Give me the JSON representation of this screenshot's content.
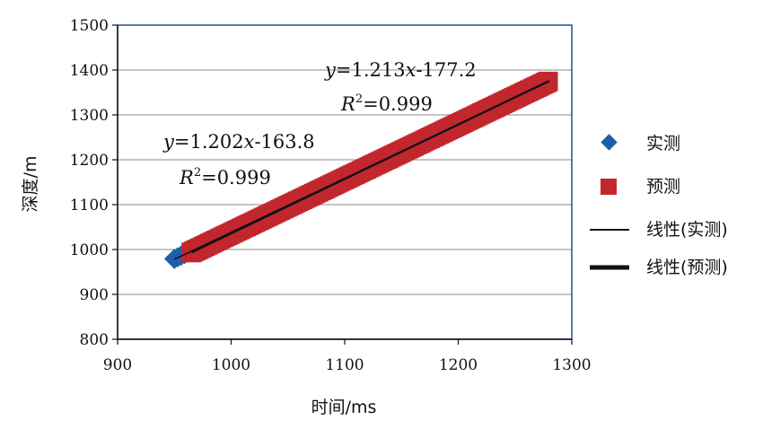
{
  "chart_data": {
    "type": "scatter",
    "xlabel": "时间/ms",
    "ylabel": "深度/m",
    "xlim": [
      900,
      1300
    ],
    "ylim": [
      800,
      1500
    ],
    "xticks": [
      "900",
      "1000",
      "1100",
      "1200",
      "1300"
    ],
    "yticks": [
      "800",
      "900",
      "1000",
      "1100",
      "1200",
      "1300",
      "1400",
      "1500"
    ],
    "grid": "horizontal",
    "legend_position": "right",
    "series": [
      {
        "name": "实测",
        "marker": "diamond",
        "color": "#1f5fa8",
        "x_range": [
          950,
          965
        ],
        "points": [
          [
            950,
            979.2
          ],
          [
            953,
            982.8
          ],
          [
            956,
            986.5
          ],
          [
            959,
            990.1
          ],
          [
            962,
            993.7
          ],
          [
            965,
            997.3
          ]
        ]
      },
      {
        "name": "预测",
        "marker": "square",
        "color": "#c1272d",
        "x_range": [
          965,
          1280
        ],
        "step": 2
      },
      {
        "name": "线性(实测)",
        "type": "line",
        "color": "#111111",
        "slope": 1.202,
        "intercept": -163.8,
        "x_range": [
          950,
          1280
        ]
      },
      {
        "name": "线性(预测)",
        "type": "line",
        "color": "#111111",
        "slope": 1.213,
        "intercept": -177.2,
        "x_range": [
          965,
          1280
        ]
      }
    ],
    "annotations": [
      {
        "y_var": "y",
        "equal_coef": "=1.213",
        "x_var": "x",
        "rest": "-177.2",
        "r_label": "R",
        "r_sup": "2",
        "r_value": "=0.999"
      },
      {
        "y_var": "y",
        "equal_coef": "=1.202",
        "x_var": "x",
        "rest": "-163.8",
        "r_label": "R",
        "r_sup": "2",
        "r_value": "=0.999"
      }
    ]
  }
}
